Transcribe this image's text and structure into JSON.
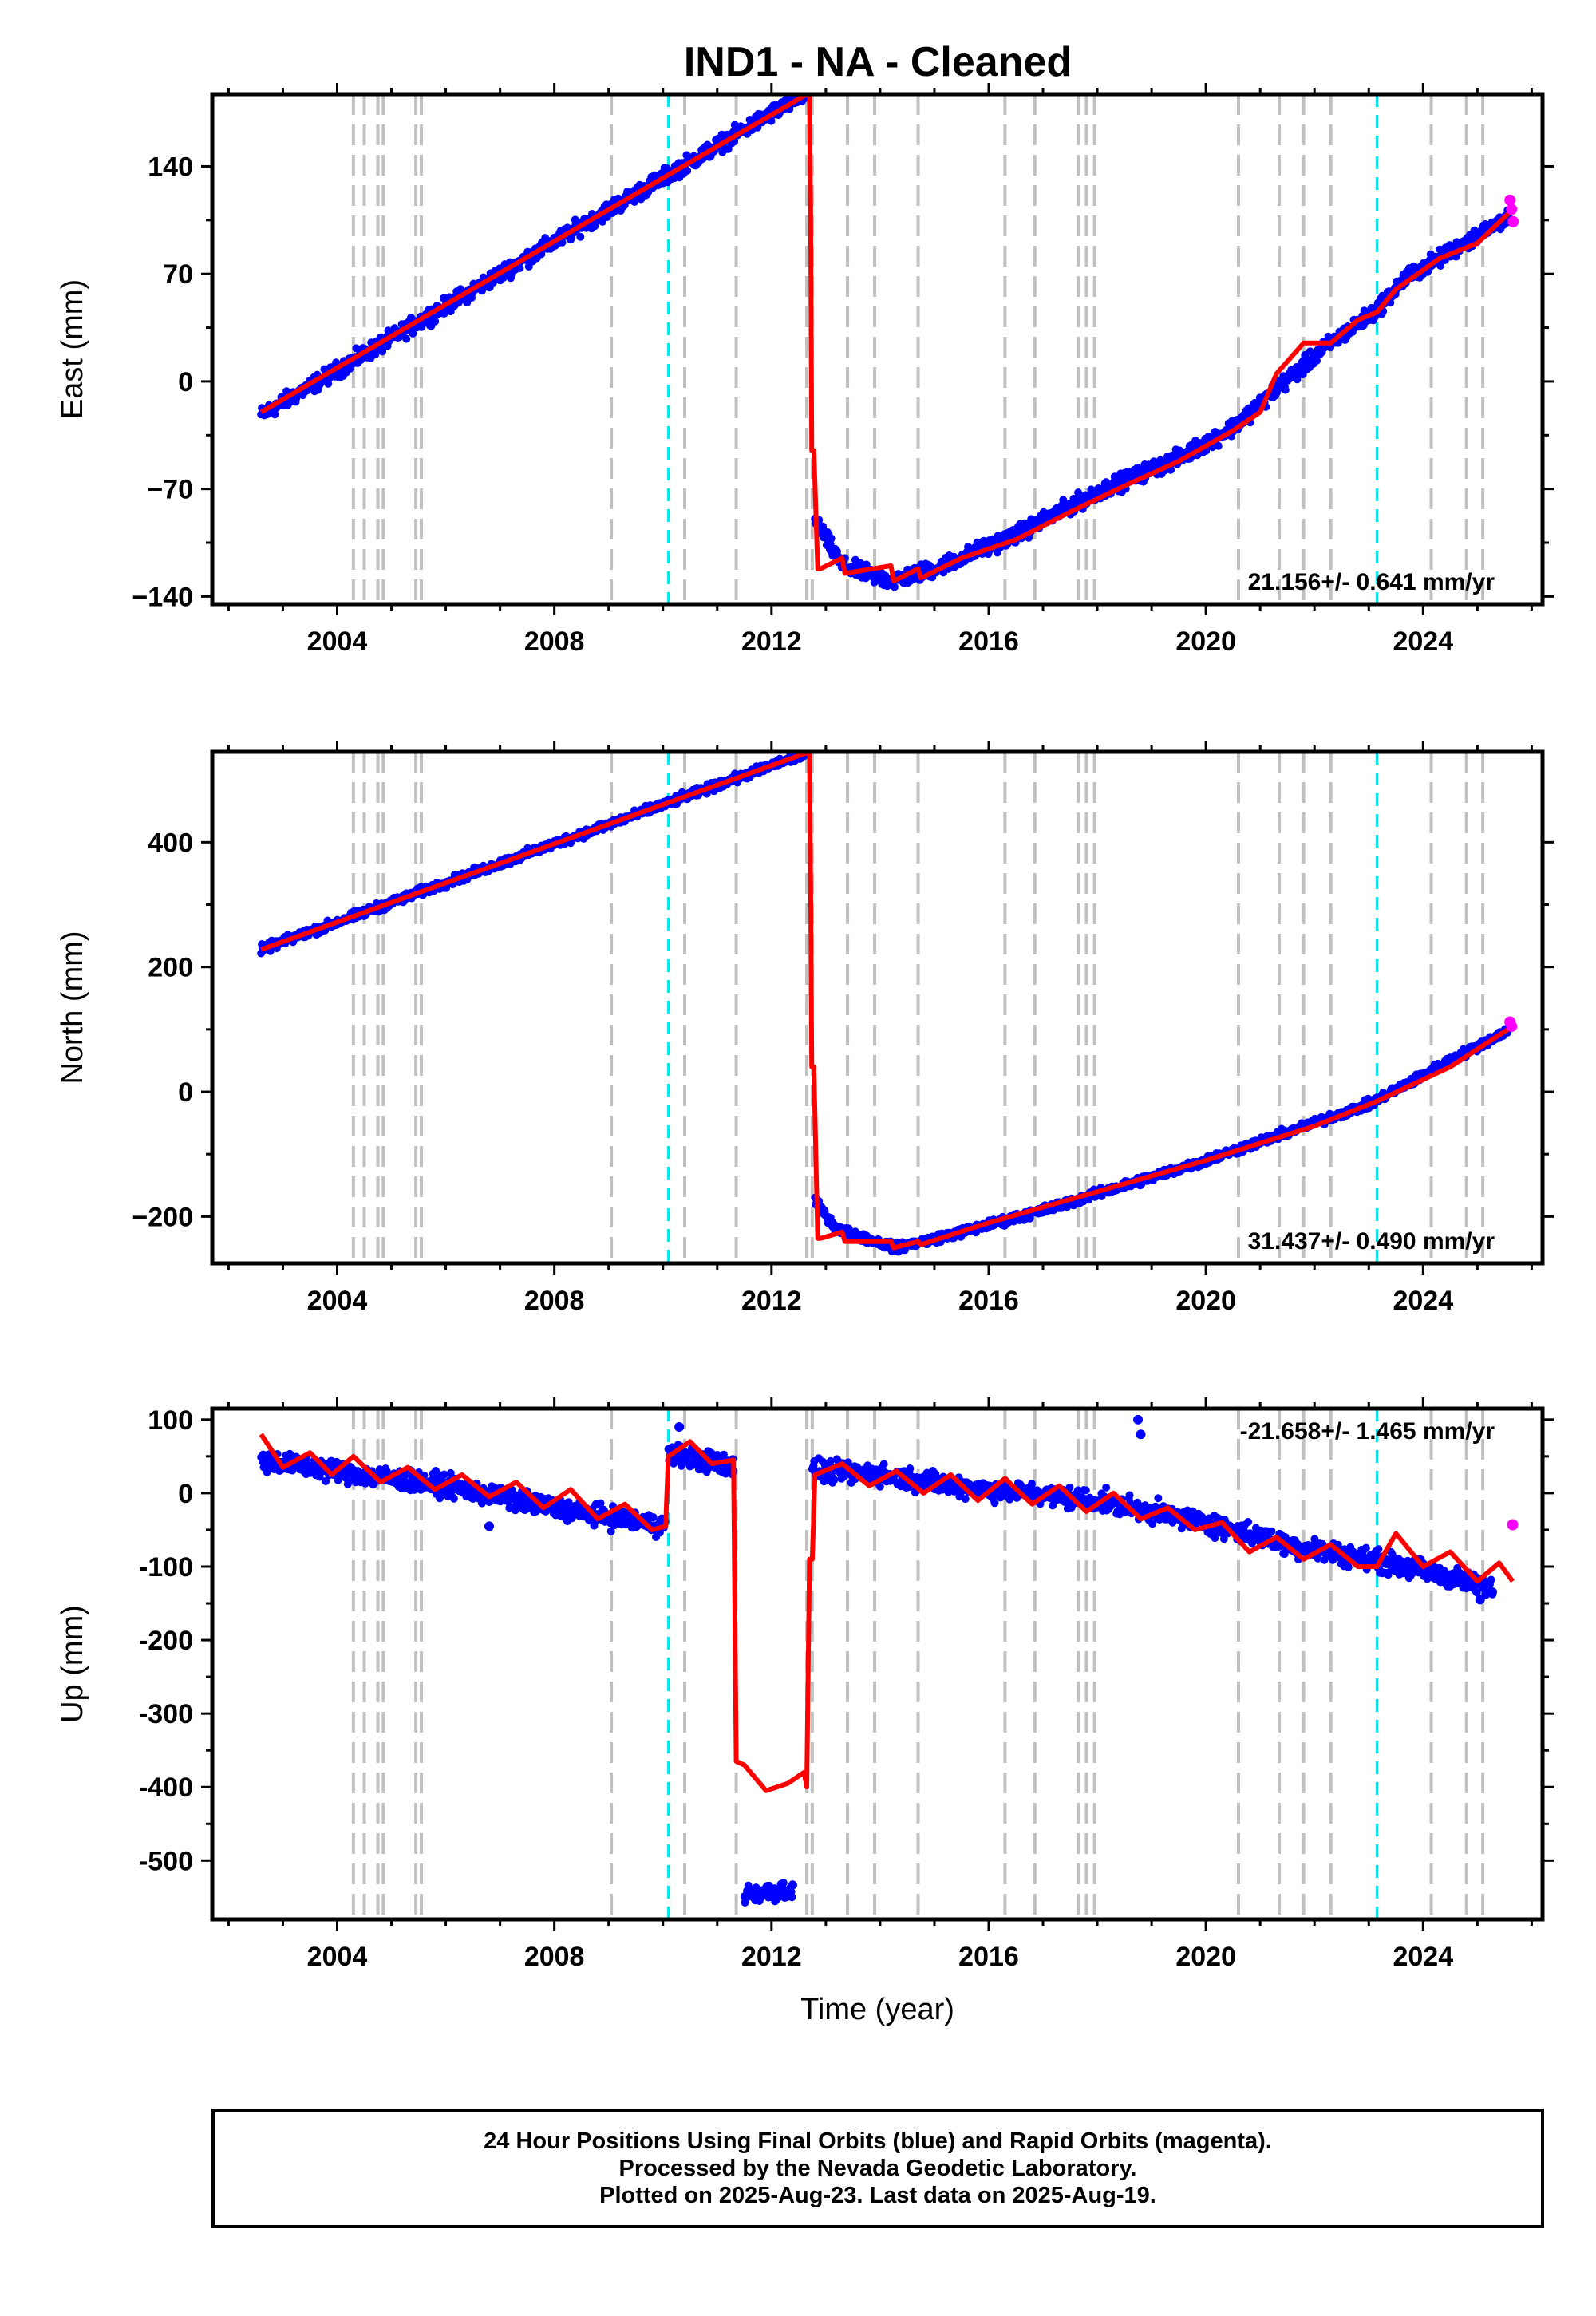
{
  "title": "IND1  - NA - Cleaned",
  "footer": {
    "line1": "24 Hour Positions Using Final Orbits (blue) and Rapid Orbits (magenta).",
    "line2": "Processed by the Nevada Geodetic Laboratory.",
    "line3": "Plotted on 2025-Aug-23. Last data on 2025-Aug-19."
  },
  "colors": {
    "final_orbits": "#0000ff",
    "rapid_orbits": "#ff00ff",
    "model": "#ff0000",
    "event_lines": "#c0c0c0",
    "equipment_lines": "#00e5ee"
  },
  "chart_data": [
    {
      "type": "scatter",
      "panel": "east",
      "ylabel": "East (mm)",
      "xlabel": "",
      "xlim": [
        2001.7,
        2026.2
      ],
      "ylim": [
        -145,
        187
      ],
      "xticks": [
        2004,
        2008,
        2012,
        2016,
        2020,
        2024
      ],
      "yticks": [
        -140,
        -70,
        0,
        70,
        140
      ],
      "ytick_labels": [
        "−140",
        "−70",
        "0",
        "70",
        "140"
      ],
      "rate_text": "21.156+/- 0.641 mm/yr",
      "rate_position": "bottom-right",
      "gray_event_lines": [
        2004.3,
        2004.5,
        2004.75,
        2004.85,
        2005.45,
        2005.55,
        2009.05,
        2010.4,
        2011.35,
        2012.65,
        2012.75,
        2013.4,
        2013.9,
        2014.7,
        2016.3,
        2016.85,
        2017.65,
        2017.8,
        2017.95,
        2020.6,
        2021.35,
        2021.8,
        2022.3,
        2024.15,
        2024.8,
        2025.1
      ],
      "cyan_event_lines": [
        2010.1,
        2023.15
      ],
      "final_segments": [
        {
          "x": [
            2002.6,
            2012.65
          ],
          "y": [
            -22,
            188
          ]
        },
        {
          "x": [
            2012.8,
            2013.3,
            2014.2,
            2015.0,
            2016.5,
            2018.0,
            2019.5,
            2020.5,
            2021.3,
            2022.3,
            2023.1,
            2023.7,
            2024.3,
            2025.0,
            2025.6
          ],
          "y": [
            -90,
            -120,
            -130,
            -122,
            -100,
            -72,
            -50,
            -30,
            -5,
            25,
            45,
            68,
            80,
            95,
            108
          ]
        }
      ],
      "rapid_points": {
        "x": [
          2025.6,
          2025.63,
          2025.66
        ],
        "y": [
          118,
          112,
          104
        ]
      },
      "model_line": {
        "x": [
          2002.6,
          2012.7,
          2012.72,
          2012.74,
          2012.78,
          2012.85,
          2012.9,
          2013.3,
          2013.35,
          2014.2,
          2014.25,
          2014.7,
          2014.75,
          2015.5,
          2016.5,
          2017.5,
          2018.5,
          2019.5,
          2020.5,
          2021.0,
          2021.3,
          2021.8,
          2022.3,
          2022.8,
          2023.15,
          2023.5,
          2024.3,
          2025.0,
          2025.65
        ],
        "y": [
          -20,
          188,
          112,
          -45,
          -45,
          -122,
          -122,
          -115,
          -125,
          -120,
          -130,
          -122,
          -128,
          -115,
          -103,
          -85,
          -68,
          -52,
          -32,
          -20,
          5,
          25,
          25,
          40,
          45,
          60,
          80,
          90,
          112
        ]
      }
    },
    {
      "type": "scatter",
      "panel": "north",
      "ylabel": "North (mm)",
      "xlabel": "",
      "xlim": [
        2001.7,
        2026.2
      ],
      "ylim": [
        -275,
        545
      ],
      "xticks": [
        2004,
        2008,
        2012,
        2016,
        2020,
        2024
      ],
      "yticks": [
        -200,
        0,
        200,
        400
      ],
      "ytick_labels": [
        "−200",
        "0",
        "200",
        "400"
      ],
      "rate_text": "31.437+/- 0.490 mm/yr",
      "rate_position": "bottom-right",
      "gray_event_lines": [
        2004.3,
        2004.5,
        2004.75,
        2004.85,
        2005.45,
        2005.55,
        2009.05,
        2010.4,
        2011.35,
        2012.65,
        2012.75,
        2013.4,
        2013.9,
        2014.7,
        2016.3,
        2016.85,
        2017.65,
        2017.8,
        2017.95,
        2020.6,
        2021.35,
        2021.8,
        2022.3,
        2024.15,
        2024.8,
        2025.1
      ],
      "cyan_event_lines": [
        2010.1,
        2023.15
      ],
      "final_segments": [
        {
          "x": [
            2002.6,
            2012.65
          ],
          "y": [
            228,
            543
          ]
        },
        {
          "x": [
            2012.8,
            2013.2,
            2014.3,
            2015.5,
            2017.0,
            2018.5,
            2020.0,
            2021.5,
            2023.0,
            2024.5,
            2025.6
          ],
          "y": [
            -175,
            -220,
            -250,
            -225,
            -190,
            -150,
            -110,
            -65,
            -20,
            50,
            100
          ]
        }
      ],
      "rapid_points": {
        "x": [
          2025.6,
          2025.63
        ],
        "y": [
          112,
          105
        ]
      },
      "model_line": {
        "x": [
          2002.6,
          2012.7,
          2012.72,
          2012.74,
          2012.78,
          2012.85,
          2012.9,
          2013.3,
          2013.35,
          2014.2,
          2014.25,
          2014.7,
          2014.75,
          2016.0,
          2018.0,
          2020.0,
          2022.0,
          2023.15,
          2024.5,
          2025.65
        ],
        "y": [
          228,
          545,
          340,
          40,
          40,
          -235,
          -235,
          -225,
          -240,
          -240,
          -250,
          -240,
          -245,
          -210,
          -160,
          -110,
          -55,
          -15,
          40,
          105
        ]
      }
    },
    {
      "type": "scatter",
      "panel": "up",
      "ylabel": "Up (mm)",
      "xlabel": "Time (year)",
      "xlim": [
        2001.7,
        2026.2
      ],
      "ylim": [
        -580,
        115
      ],
      "xticks": [
        2004,
        2008,
        2012,
        2016,
        2020,
        2024
      ],
      "yticks": [
        -500,
        -400,
        -300,
        -200,
        -100,
        0,
        100
      ],
      "ytick_labels": [
        "-500",
        "-400",
        "-300",
        "-200",
        "-100",
        "0",
        "100"
      ],
      "rate_text": "-21.658+/- 1.465 mm/yr",
      "rate_position": "top-right",
      "gray_event_lines": [
        2004.3,
        2004.5,
        2004.75,
        2004.85,
        2005.45,
        2005.55,
        2009.05,
        2010.4,
        2011.35,
        2012.65,
        2012.75,
        2013.4,
        2013.9,
        2014.7,
        2016.3,
        2016.85,
        2017.65,
        2017.8,
        2017.95,
        2020.6,
        2021.35,
        2021.8,
        2022.3,
        2024.15,
        2024.8,
        2025.1
      ],
      "cyan_event_lines": [
        2010.1,
        2023.15
      ],
      "final_segments": [
        {
          "x": [
            2002.6,
            2004.0,
            2006.0,
            2008.0,
            2010.05
          ],
          "y": [
            45,
            30,
            10,
            -20,
            -45
          ]
        },
        {
          "x": [
            2010.1,
            2011.3
          ],
          "y": [
            55,
            35
          ]
        },
        {
          "x": [
            2011.5,
            2012.4
          ],
          "y": [
            -545,
            -540
          ]
        },
        {
          "x": [
            2012.75,
            2014.0,
            2016.0,
            2018.0,
            2020.0,
            2021.5,
            2023.0,
            2024.0,
            2025.3
          ],
          "y": [
            30,
            25,
            5,
            -10,
            -40,
            -70,
            -90,
            -105,
            -130
          ]
        }
      ],
      "outliers": {
        "x": [
          2006.8,
          2010.3,
          2018.75,
          2018.8,
          2025.05
        ],
        "y": [
          -45,
          90,
          100,
          80,
          -145
        ]
      },
      "rapid_points": {
        "x": [
          2025.65
        ],
        "y": [
          -43
        ]
      },
      "model_line": {
        "x": [
          2002.6,
          2003.0,
          2003.5,
          2003.9,
          2004.3,
          2004.8,
          2005.3,
          2005.8,
          2006.3,
          2006.8,
          2007.3,
          2007.8,
          2008.3,
          2008.8,
          2009.3,
          2009.8,
          2010.05,
          2010.1,
          2010.5,
          2010.9,
          2011.3,
          2011.35,
          2011.5,
          2011.9,
          2012.3,
          2012.6,
          2012.65,
          2012.7,
          2012.75,
          2012.8,
          2013.3,
          2013.8,
          2014.3,
          2014.8,
          2015.3,
          2015.8,
          2016.3,
          2016.8,
          2017.3,
          2017.8,
          2018.3,
          2018.8,
          2019.3,
          2019.8,
          2020.3,
          2020.8,
          2021.3,
          2021.8,
          2022.3,
          2022.8,
          2023.15,
          2023.5,
          2024.0,
          2024.5,
          2025.0,
          2025.4,
          2025.65
        ],
        "y": [
          80,
          35,
          55,
          25,
          50,
          15,
          35,
          5,
          25,
          -5,
          15,
          -20,
          5,
          -35,
          -15,
          -50,
          -45,
          50,
          70,
          40,
          45,
          -365,
          -370,
          -405,
          -395,
          -380,
          -400,
          -90,
          -90,
          25,
          40,
          10,
          30,
          0,
          25,
          -10,
          20,
          -15,
          10,
          -25,
          0,
          -35,
          -20,
          -50,
          -40,
          -80,
          -60,
          -90,
          -70,
          -100,
          -100,
          -55,
          -100,
          -80,
          -120,
          -95,
          -120
        ]
      }
    }
  ]
}
